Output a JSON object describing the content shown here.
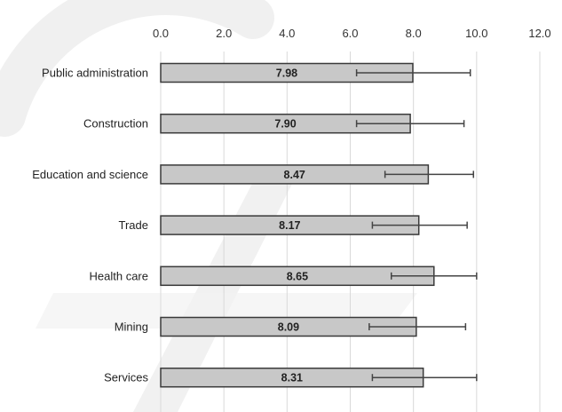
{
  "chart_data": {
    "type": "bar",
    "orientation": "horizontal",
    "title": "",
    "xlabel": "",
    "ylabel": "",
    "xlim": [
      0,
      12
    ],
    "tick_values": [
      0,
      2,
      4,
      6,
      8,
      10,
      12
    ],
    "tick_labels": [
      "0.0",
      "2.0",
      "4.0",
      "6.0",
      "8.0",
      "10.0",
      "12.0"
    ],
    "x_axis_position": "top",
    "grid": true,
    "legend": "none",
    "categories": [
      "Public administration",
      "Construction",
      "Education and science",
      "Trade",
      "Health care",
      "Mining",
      "Services"
    ],
    "values": [
      7.98,
      7.9,
      8.47,
      8.17,
      8.65,
      8.09,
      8.31
    ],
    "value_labels": [
      "7.98",
      "7.90",
      "8.47",
      "8.17",
      "8.65",
      "8.09",
      "8.31"
    ],
    "error_low": [
      6.2,
      6.2,
      7.1,
      6.7,
      7.3,
      6.6,
      6.7
    ],
    "error_high": [
      9.8,
      9.6,
      9.9,
      9.7,
      10.0,
      9.65,
      10.0
    ],
    "colors": {
      "bar_fill": "#c8c8c8",
      "bar_stroke": "#3a3a3a",
      "grid": "#d9d9d9",
      "error_bar": "#444444"
    }
  }
}
